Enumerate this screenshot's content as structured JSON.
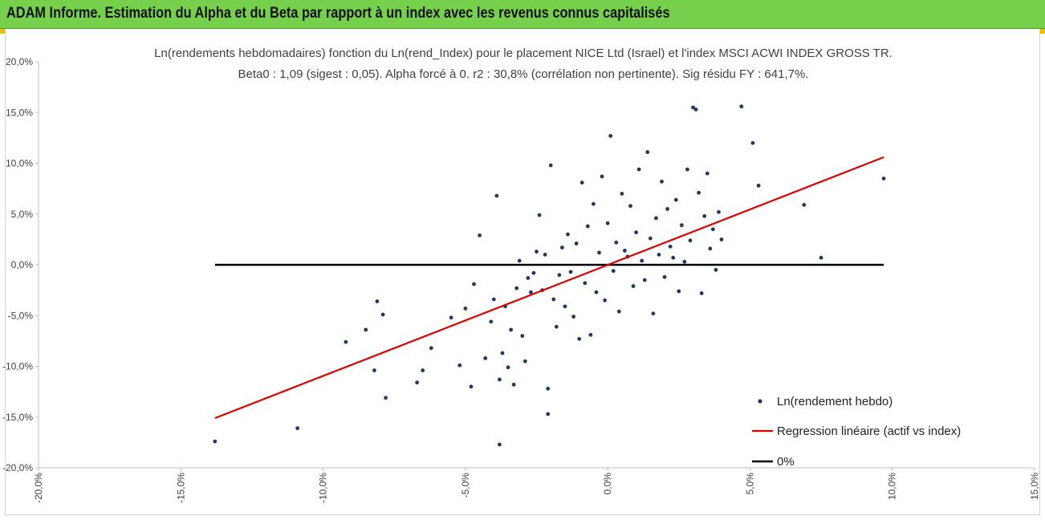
{
  "header": {
    "banner_title": "ADAM Informe. Estimation du Alpha et du Beta par rapport à un index avec les revenus connus capitalisés"
  },
  "colors": {
    "banner": "#76d04b",
    "points": "#1f3864",
    "regression": "#e00000",
    "zero_line": "#000000"
  },
  "chart_data": {
    "type": "scatter",
    "title": "Ln(rendements hebdomadaires) fonction du Ln(rend_Index) pour le placement NICE Ltd (Israel) et l'index MSCI ACWI INDEX GROSS TR.",
    "subtitle": "Beta0 : 1,09  (sigest : 0,05).  Alpha forcé à 0. r2 : 30,8% (corrélation non pertinente). Sig résidu FY : 641,7%.",
    "xlabel": "",
    "ylabel": "",
    "xlim": [
      -0.2,
      0.15
    ],
    "ylim": [
      -0.2,
      0.2
    ],
    "x_ticks": [
      "-20,0%",
      "-15,0%",
      "-10,0%",
      "-5,0%",
      "0,0%",
      "5,0%",
      "10,0%",
      "15,0%"
    ],
    "y_ticks": [
      "20,0%",
      "15,0%",
      "10,0%",
      "5,0%",
      "0,0%",
      "-5,0%",
      "-10,0%",
      "-15,0%",
      "-20,0%"
    ],
    "grid": "none",
    "legend_position": "bottom-right",
    "legend": [
      "Ln(rendement hebdo)",
      "Regression linéaire (actif vs index)",
      "0%"
    ],
    "series": [
      {
        "name": "Ln(rendement hebdo)",
        "kind": "points",
        "x": [
          -0.138,
          -0.109,
          -0.092,
          -0.085,
          -0.082,
          -0.081,
          -0.079,
          -0.078,
          -0.067,
          -0.065,
          -0.062,
          -0.055,
          -0.052,
          -0.05,
          -0.048,
          -0.047,
          -0.045,
          -0.043,
          -0.041,
          -0.04,
          -0.039,
          -0.038,
          -0.038,
          -0.037,
          -0.036,
          -0.035,
          -0.034,
          -0.033,
          -0.032,
          -0.031,
          -0.03,
          -0.029,
          -0.028,
          -0.027,
          -0.026,
          -0.025,
          -0.024,
          -0.023,
          -0.022,
          -0.021,
          -0.021,
          -0.02,
          -0.019,
          -0.018,
          -0.017,
          -0.016,
          -0.015,
          -0.014,
          -0.013,
          -0.012,
          -0.011,
          -0.01,
          -0.009,
          -0.008,
          -0.007,
          -0.006,
          -0.005,
          -0.004,
          -0.003,
          -0.002,
          -0.001,
          0.0,
          0.001,
          0.002,
          0.003,
          0.004,
          0.005,
          0.006,
          0.007,
          0.008,
          0.009,
          0.01,
          0.011,
          0.012,
          0.013,
          0.014,
          0.015,
          0.016,
          0.017,
          0.018,
          0.019,
          0.02,
          0.021,
          0.022,
          0.023,
          0.024,
          0.025,
          0.026,
          0.027,
          0.028,
          0.029,
          0.03,
          0.031,
          0.032,
          0.033,
          0.034,
          0.035,
          0.036,
          0.037,
          0.038,
          0.039,
          0.04,
          0.047,
          0.051,
          0.053,
          0.069,
          0.075,
          0.097
        ],
        "y": [
          -0.174,
          -0.161,
          -0.076,
          -0.064,
          -0.104,
          -0.036,
          -0.049,
          -0.131,
          -0.116,
          -0.104,
          -0.082,
          -0.052,
          -0.099,
          -0.043,
          -0.12,
          -0.019,
          0.029,
          -0.092,
          -0.056,
          -0.034,
          0.068,
          -0.113,
          -0.177,
          -0.087,
          -0.041,
          -0.101,
          -0.064,
          -0.118,
          -0.023,
          0.004,
          -0.07,
          -0.095,
          -0.013,
          -0.027,
          -0.008,
          0.013,
          0.049,
          -0.025,
          0.01,
          -0.122,
          -0.147,
          0.098,
          -0.034,
          -0.061,
          -0.01,
          0.017,
          -0.041,
          0.03,
          -0.007,
          -0.051,
          0.021,
          -0.073,
          0.081,
          -0.018,
          0.038,
          -0.069,
          0.06,
          -0.027,
          0.012,
          0.087,
          -0.035,
          0.041,
          0.127,
          -0.006,
          0.022,
          -0.046,
          0.07,
          0.014,
          0.008,
          0.058,
          -0.021,
          0.032,
          0.094,
          0.004,
          -0.015,
          0.111,
          0.026,
          -0.048,
          0.046,
          0.01,
          0.082,
          -0.012,
          0.055,
          0.018,
          0.007,
          0.064,
          -0.026,
          0.039,
          0.003,
          0.094,
          0.024,
          0.155,
          0.153,
          0.071,
          -0.028,
          0.048,
          0.09,
          0.016,
          0.035,
          -0.005,
          0.052,
          0.025,
          0.156,
          0.12,
          0.078,
          0.059,
          0.007,
          0.085
        ]
      },
      {
        "name": "Regression linéaire (actif vs index)",
        "kind": "line",
        "x": [
          -0.138,
          0.097
        ],
        "y": [
          -0.151,
          0.106
        ]
      },
      {
        "name": "0%",
        "kind": "line",
        "x": [
          -0.138,
          0.097
        ],
        "y": [
          0,
          0
        ]
      }
    ]
  }
}
